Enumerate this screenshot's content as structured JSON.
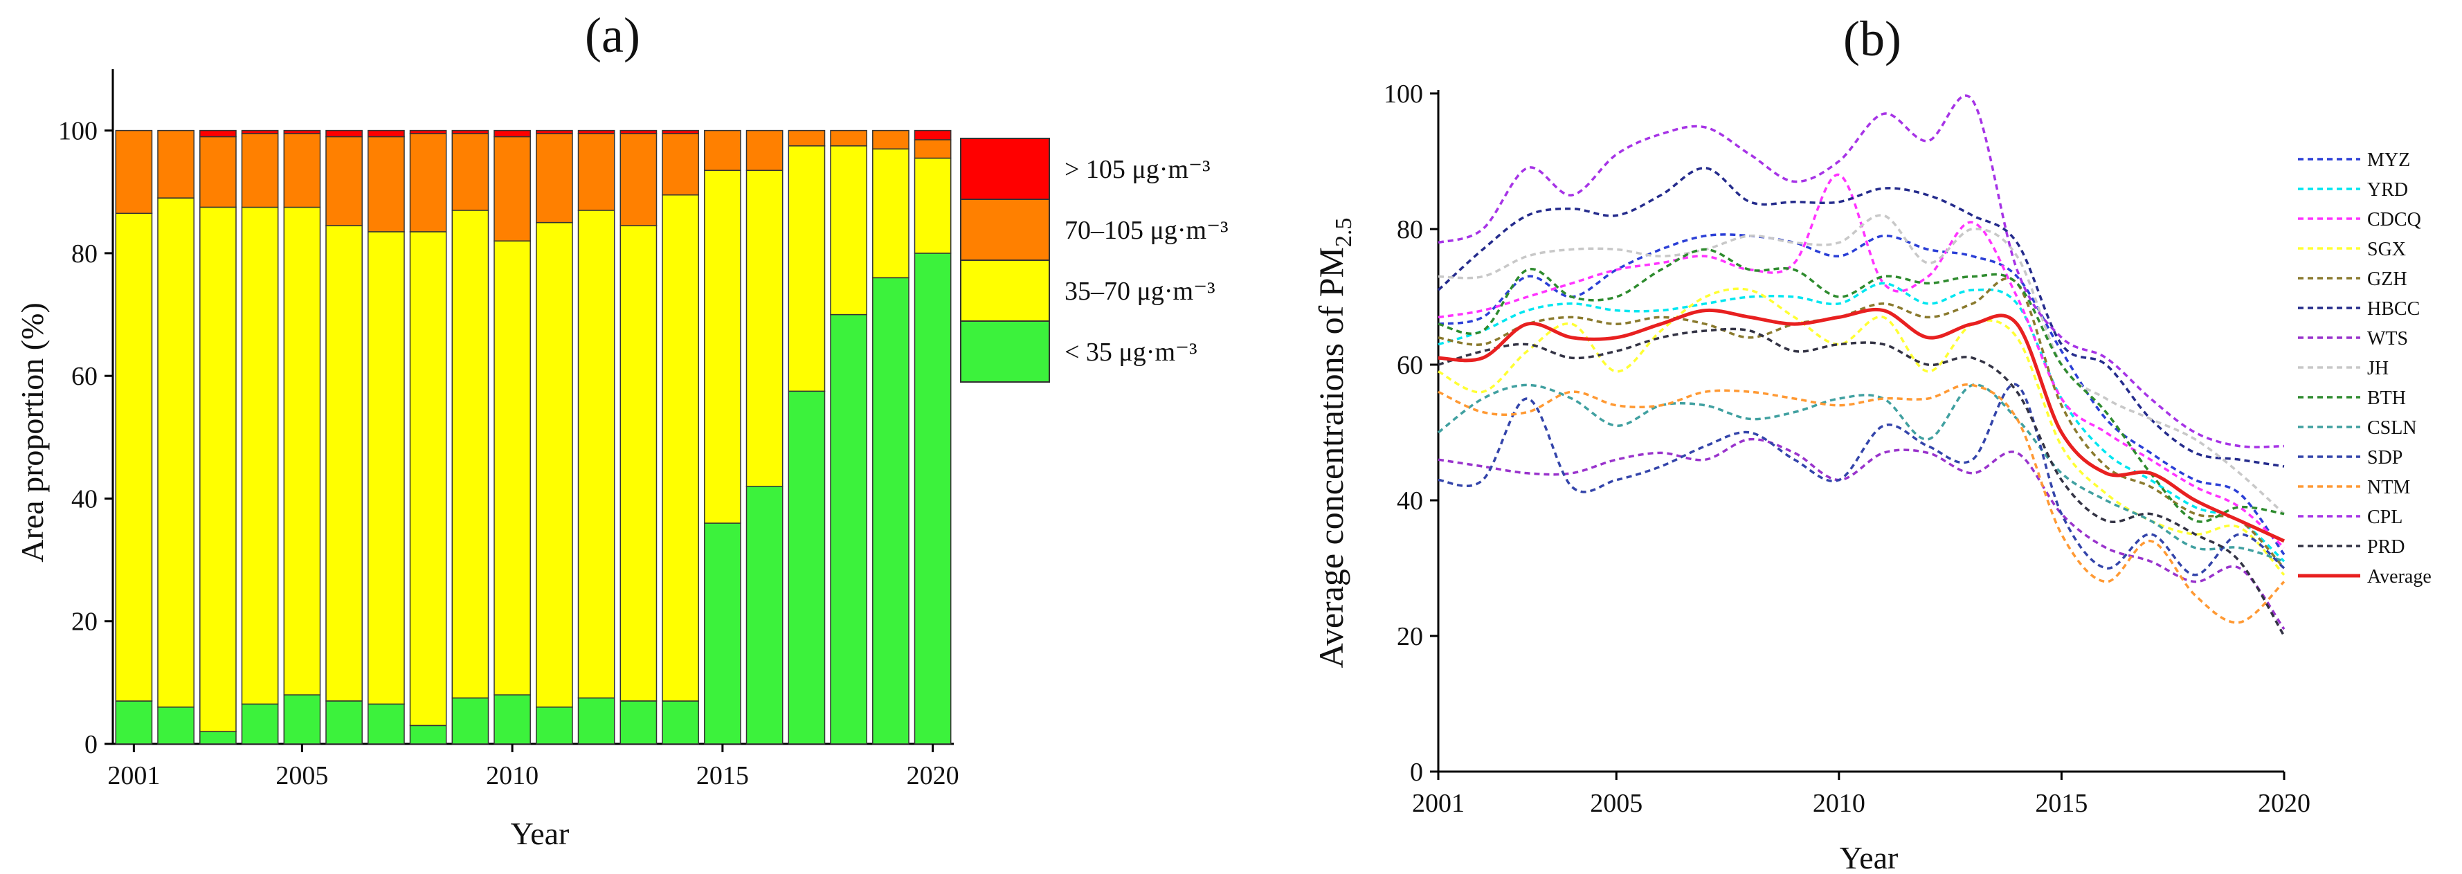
{
  "chart_data": [
    {
      "panel": "(a)",
      "type": "bar",
      "stacked": true,
      "xlabel": "Year",
      "ylabel": "Area proportion (%)",
      "ylim": [
        0,
        110
      ],
      "yticks": [
        0,
        20,
        40,
        60,
        80,
        100
      ],
      "xticks": [
        "2001",
        "2005",
        "2010",
        "2015",
        "2020"
      ],
      "categories": [
        "2001",
        "2002",
        "2003",
        "2004",
        "2005",
        "2006",
        "2007",
        "2008",
        "2009",
        "2010",
        "2011",
        "2012",
        "2013",
        "2014",
        "2015",
        "2016",
        "2017",
        "2018",
        "2019",
        "2020"
      ],
      "series": [
        {
          "name": "< 35 μg·m⁻³",
          "color": "#3cf23c",
          "values": [
            7,
            6,
            2,
            6.5,
            8,
            7,
            6.5,
            3,
            7.5,
            8,
            6,
            7.5,
            7,
            7,
            36,
            42,
            57.5,
            70,
            76,
            80
          ]
        },
        {
          "name": "35–70 μg·m⁻³",
          "color": "#ffff00",
          "values": [
            79.5,
            83,
            85.5,
            81,
            79.5,
            77.5,
            77,
            80.5,
            79.5,
            74,
            79,
            79.5,
            77.5,
            82.5,
            57.5,
            51.5,
            40,
            27.5,
            21,
            15.5
          ]
        },
        {
          "name": "70–105 μg·m⁻³",
          "color": "#ff8000",
          "values": [
            13.5,
            11,
            11.5,
            12,
            12,
            14.5,
            15.5,
            16,
            12.5,
            17,
            14.5,
            12.5,
            15,
            10,
            6.5,
            6.5,
            2.5,
            2.5,
            3,
            3
          ]
        },
        {
          "name": "> 105 μg·m⁻³",
          "color": "#ff0000",
          "values": [
            0,
            0,
            1,
            0.5,
            0.5,
            1,
            1,
            0.5,
            0.5,
            1,
            0.5,
            0.5,
            0.5,
            0.5,
            0,
            0,
            0,
            0,
            0,
            1.5
          ]
        }
      ],
      "legend_order": [
        "> 105 μg·m⁻³",
        "70–105 μg·m⁻³",
        "35–70 μg·m⁻³",
        "< 35 μg·m⁻³"
      ],
      "legend_position": "right"
    },
    {
      "panel": "(b)",
      "type": "line",
      "xlabel": "Year",
      "ylabel": "Average concentrations of PM",
      "ylabel_sub": "2.5",
      "xlim": [
        2001,
        2020
      ],
      "ylim": [
        0,
        100
      ],
      "yticks": [
        0,
        20,
        40,
        60,
        80,
        100
      ],
      "xticks": [
        2001,
        2005,
        2010,
        2015,
        2020
      ],
      "x": [
        2001,
        2002,
        2003,
        2004,
        2005,
        2006,
        2007,
        2008,
        2009,
        2010,
        2011,
        2012,
        2013,
        2014,
        2015,
        2016,
        2017,
        2018,
        2019,
        2020
      ],
      "series": [
        {
          "name": "MYZ",
          "color": "#2b3fd6",
          "dash": true,
          "values": [
            66,
            67,
            73,
            70,
            74,
            77,
            79,
            79,
            78,
            76,
            79,
            77,
            76,
            73,
            62,
            52,
            47,
            43,
            41,
            32
          ]
        },
        {
          "name": "YRD",
          "color": "#00e6f0",
          "dash": true,
          "values": [
            63,
            65,
            68,
            69,
            68,
            68,
            69,
            70,
            70,
            69,
            72,
            69,
            71,
            69,
            55,
            47,
            43,
            39,
            37,
            31
          ]
        },
        {
          "name": "CDCQ",
          "color": "#ff33ff",
          "dash": true,
          "values": [
            67,
            68,
            70,
            72,
            74,
            75,
            76,
            74,
            75,
            88,
            72,
            73,
            81,
            70,
            55,
            50,
            46,
            42,
            39,
            33
          ]
        },
        {
          "name": "SGX",
          "color": "#ffff33",
          "dash": true,
          "values": [
            59,
            56,
            62,
            66,
            59,
            65,
            70,
            71,
            67,
            63,
            67,
            59,
            66,
            64,
            48,
            41,
            37,
            35,
            36,
            29
          ]
        },
        {
          "name": "GZH",
          "color": "#8a7a2e",
          "dash": true,
          "values": [
            64,
            63,
            66,
            67,
            66,
            67,
            66,
            64,
            66,
            67,
            69,
            67,
            69,
            72,
            54,
            45,
            42,
            38,
            37,
            30
          ]
        },
        {
          "name": "HBCC",
          "color": "#242b8c",
          "dash": true,
          "values": [
            71,
            77,
            82,
            83,
            82,
            85,
            89,
            84,
            84,
            84,
            86,
            85,
            82,
            78,
            63,
            60,
            52,
            47,
            46,
            45
          ]
        },
        {
          "name": "WTS",
          "color": "#9933cc",
          "dash": true,
          "values": [
            46,
            45,
            44,
            44,
            46,
            47,
            46,
            49,
            47,
            43,
            47,
            47,
            44,
            47,
            38,
            33,
            31,
            28,
            30,
            21
          ]
        },
        {
          "name": "JH",
          "color": "#c8c8c8",
          "dash": true,
          "values": [
            73,
            73,
            76,
            77,
            77,
            76,
            77,
            79,
            78,
            78,
            82,
            75,
            80,
            76,
            60,
            55,
            52,
            49,
            44,
            38
          ]
        },
        {
          "name": "BTH",
          "color": "#2e8b2e",
          "dash": true,
          "values": [
            66,
            65,
            74,
            70,
            70,
            74,
            77,
            74,
            74,
            70,
            73,
            72,
            73,
            72,
            60,
            53,
            44,
            37,
            39,
            38
          ]
        },
        {
          "name": "CSLN",
          "color": "#40a0a0",
          "dash": true,
          "values": [
            50,
            55,
            57,
            55,
            51,
            54,
            54,
            52,
            53,
            55,
            55,
            49,
            57,
            52,
            44,
            40,
            37,
            33,
            33,
            31
          ]
        },
        {
          "name": "SDP",
          "color": "#3344aa",
          "dash": true,
          "values": [
            43,
            43,
            55,
            42,
            43,
            45,
            48,
            50,
            46,
            43,
            51,
            48,
            46,
            57,
            38,
            30,
            35,
            29,
            35,
            30
          ]
        },
        {
          "name": "NTM",
          "color": "#ff9933",
          "dash": true,
          "values": [
            56,
            53,
            53,
            56,
            54,
            54,
            56,
            56,
            55,
            54,
            55,
            55,
            57,
            52,
            35,
            28,
            34,
            26,
            22,
            28
          ]
        },
        {
          "name": "CPL",
          "color": "#a633e6",
          "dash": true,
          "values": [
            78,
            80,
            89,
            85,
            91,
            94,
            95,
            91,
            87,
            90,
            97,
            93,
            99,
            74,
            64,
            61,
            55,
            50,
            48,
            48
          ]
        },
        {
          "name": "PRD",
          "color": "#333344",
          "dash": true,
          "values": [
            60,
            62,
            63,
            61,
            62,
            64,
            65,
            65,
            62,
            63,
            63,
            60,
            61,
            56,
            43,
            37,
            38,
            35,
            31,
            20
          ]
        },
        {
          "name": "Average",
          "color": "#e82020",
          "dash": false,
          "values": [
            61,
            61,
            66,
            64,
            64,
            66,
            68,
            67,
            66,
            67,
            68,
            64,
            66,
            66,
            50,
            44,
            44,
            40,
            37,
            34
          ]
        }
      ],
      "legend_position": "right"
    }
  ]
}
